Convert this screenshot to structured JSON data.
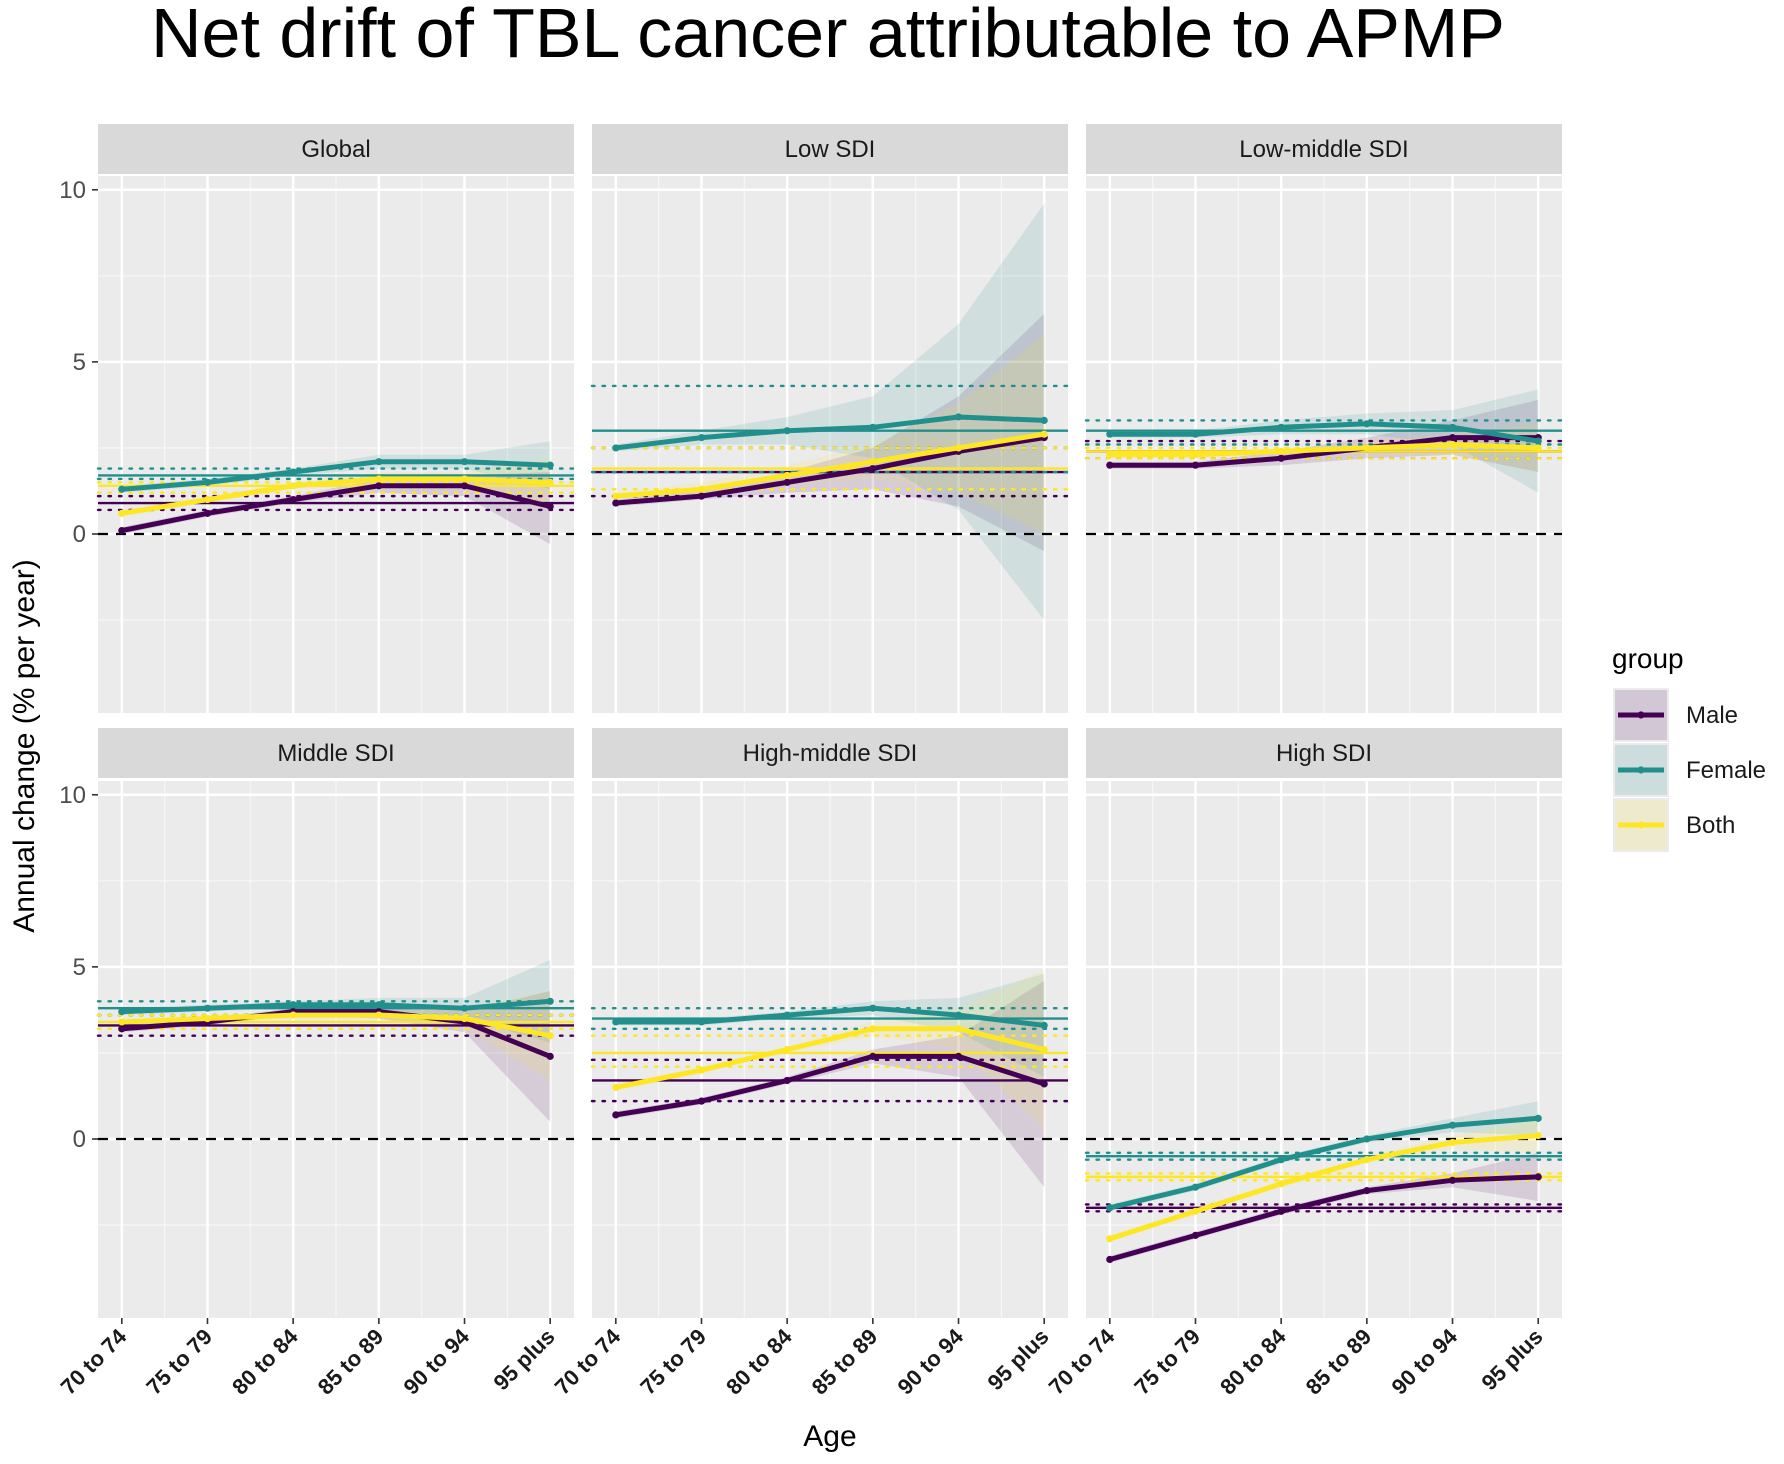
{
  "chart_data": {
    "type": "line",
    "title": "Net drift of TBL cancer attributable to APMP",
    "xlabel": "Age",
    "ylabel": "Annual change (% per year)",
    "ylim": [
      -5.2,
      10.4
    ],
    "yticks": [
      0,
      5,
      10
    ],
    "categories": [
      "70 to 74",
      "75 to 79",
      "80 to 84",
      "85 to 89",
      "90 to 94",
      "95 plus"
    ],
    "legend": {
      "title": "group",
      "position": "right",
      "entries": [
        {
          "name": "Male",
          "color": "#440154"
        },
        {
          "name": "Female",
          "color": "#21908C"
        },
        {
          "name": "Both",
          "color": "#FDE725"
        }
      ]
    },
    "colors": {
      "Male": "#440154",
      "Female": "#21908C",
      "Both": "#FDE725"
    },
    "reference_line": 0,
    "panels": [
      {
        "title": "Global",
        "series": [
          {
            "name": "Male",
            "values": [
              0.1,
              0.6,
              1.0,
              1.4,
              1.4,
              0.8
            ],
            "lower": [
              0.0,
              0.5,
              0.9,
              1.2,
              1.1,
              -0.3
            ],
            "upper": [
              0.2,
              0.7,
              1.1,
              1.6,
              1.7,
              1.8
            ],
            "net_drift": 0.9,
            "ci": [
              0.7,
              1.1
            ]
          },
          {
            "name": "Female",
            "values": [
              1.3,
              1.5,
              1.8,
              2.1,
              2.1,
              2.0
            ],
            "lower": [
              1.2,
              1.4,
              1.7,
              1.9,
              1.9,
              1.3
            ],
            "upper": [
              1.4,
              1.6,
              1.9,
              2.3,
              2.3,
              2.7
            ],
            "net_drift": 1.7,
            "ci": [
              1.6,
              1.9
            ]
          },
          {
            "name": "Both",
            "values": [
              0.6,
              1.0,
              1.4,
              1.6,
              1.6,
              1.5
            ],
            "lower": [
              0.5,
              0.9,
              1.3,
              1.4,
              1.4,
              0.8
            ],
            "upper": [
              0.7,
              1.1,
              1.5,
              1.8,
              1.8,
              2.2
            ],
            "net_drift": 1.4,
            "ci": [
              1.2,
              1.5
            ]
          }
        ]
      },
      {
        "title": "Low SDI",
        "series": [
          {
            "name": "Male",
            "values": [
              0.9,
              1.1,
              1.5,
              1.9,
              2.4,
              2.8
            ],
            "lower": [
              0.8,
              1.0,
              1.2,
              1.3,
              0.8,
              -0.5
            ],
            "upper": [
              1.0,
              1.3,
              1.8,
              2.5,
              4.0,
              6.4
            ],
            "net_drift": 1.8,
            "ci": [
              1.1,
              2.5
            ]
          },
          {
            "name": "Female",
            "values": [
              2.5,
              2.8,
              3.0,
              3.1,
              3.4,
              3.3
            ],
            "lower": [
              2.4,
              2.6,
              2.6,
              2.2,
              0.7,
              -2.5
            ],
            "upper": [
              2.6,
              3.0,
              3.4,
              4.0,
              6.1,
              9.6
            ],
            "net_drift": 3.0,
            "ci": [
              1.8,
              4.3
            ]
          },
          {
            "name": "Both",
            "values": [
              1.1,
              1.3,
              1.7,
              2.1,
              2.5,
              2.9
            ],
            "lower": [
              1.0,
              1.1,
              1.4,
              1.6,
              1.2,
              0.0
            ],
            "upper": [
              1.2,
              1.5,
              2.0,
              2.6,
              3.8,
              5.8
            ],
            "net_drift": 1.9,
            "ci": [
              1.3,
              2.5
            ]
          }
        ]
      },
      {
        "title": "Low-middle SDI",
        "series": [
          {
            "name": "Male",
            "values": [
              2.0,
              2.0,
              2.2,
              2.5,
              2.8,
              2.8
            ],
            "lower": [
              1.9,
              1.9,
              2.0,
              2.2,
              2.3,
              1.8
            ],
            "upper": [
              2.1,
              2.1,
              2.4,
              2.8,
              3.3,
              3.9
            ],
            "net_drift": 2.4,
            "ci": [
              2.2,
              2.7
            ]
          },
          {
            "name": "Female",
            "values": [
              2.9,
              2.9,
              3.1,
              3.2,
              3.1,
              2.7
            ],
            "lower": [
              2.8,
              2.8,
              2.9,
              2.9,
              2.6,
              1.2
            ],
            "upper": [
              3.0,
              3.0,
              3.3,
              3.5,
              3.6,
              4.2
            ],
            "net_drift": 3.0,
            "ci": [
              2.6,
              3.3
            ]
          },
          {
            "name": "Both",
            "values": [
              2.3,
              2.3,
              2.4,
              2.5,
              2.6,
              2.5
            ],
            "lower": [
              2.2,
              2.2,
              2.3,
              2.3,
              2.3,
              1.8
            ],
            "upper": [
              2.4,
              2.4,
              2.5,
              2.7,
              2.9,
              3.2
            ],
            "net_drift": 2.4,
            "ci": [
              2.2,
              2.5
            ]
          }
        ]
      },
      {
        "title": "Middle SDI",
        "series": [
          {
            "name": "Male",
            "values": [
              3.2,
              3.4,
              3.7,
              3.7,
              3.4,
              2.4
            ],
            "lower": [
              3.1,
              3.3,
              3.6,
              3.5,
              3.1,
              0.5
            ],
            "upper": [
              3.3,
              3.5,
              3.8,
              3.9,
              3.7,
              4.3
            ],
            "net_drift": 3.3,
            "ci": [
              3.0,
              3.6
            ]
          },
          {
            "name": "Female",
            "values": [
              3.7,
              3.8,
              3.9,
              3.9,
              3.8,
              4.0
            ],
            "lower": [
              3.6,
              3.7,
              3.8,
              3.7,
              3.5,
              2.8
            ],
            "upper": [
              3.8,
              3.9,
              4.0,
              4.1,
              4.1,
              5.2
            ],
            "net_drift": 3.8,
            "ci": [
              3.6,
              4.0
            ]
          },
          {
            "name": "Both",
            "values": [
              3.4,
              3.5,
              3.6,
              3.6,
              3.5,
              3.0
            ],
            "lower": [
              3.3,
              3.4,
              3.5,
              3.5,
              3.2,
              1.7
            ],
            "upper": [
              3.5,
              3.6,
              3.7,
              3.7,
              3.8,
              4.3
            ],
            "net_drift": 3.4,
            "ci": [
              3.2,
              3.6
            ]
          }
        ]
      },
      {
        "title": "High-middle SDI",
        "series": [
          {
            "name": "Male",
            "values": [
              0.7,
              1.1,
              1.7,
              2.4,
              2.4,
              1.6
            ],
            "lower": [
              0.6,
              1.0,
              1.6,
              2.2,
              1.8,
              -1.4
            ],
            "upper": [
              0.8,
              1.2,
              1.8,
              2.6,
              3.0,
              4.6
            ],
            "net_drift": 1.7,
            "ci": [
              1.1,
              2.3
            ]
          },
          {
            "name": "Female",
            "values": [
              3.4,
              3.4,
              3.6,
              3.8,
              3.6,
              3.3
            ],
            "lower": [
              3.3,
              3.3,
              3.5,
              3.6,
              3.1,
              1.8
            ],
            "upper": [
              3.5,
              3.5,
              3.7,
              4.0,
              4.1,
              4.8
            ],
            "net_drift": 3.5,
            "ci": [
              3.2,
              3.8
            ]
          },
          {
            "name": "Both",
            "values": [
              1.5,
              2.0,
              2.6,
              3.2,
              3.2,
              2.6
            ],
            "lower": [
              1.4,
              1.9,
              2.5,
              3.0,
              2.6,
              0.3
            ],
            "upper": [
              1.6,
              2.1,
              2.7,
              3.4,
              3.8,
              4.9
            ],
            "net_drift": 2.5,
            "ci": [
              2.1,
              3.0
            ]
          }
        ]
      },
      {
        "title": "High SDI",
        "series": [
          {
            "name": "Male",
            "values": [
              -3.5,
              -2.8,
              -2.1,
              -1.5,
              -1.2,
              -1.1
            ],
            "lower": [
              -3.6,
              -2.9,
              -2.2,
              -1.6,
              -1.4,
              -1.8
            ],
            "upper": [
              -3.4,
              -2.7,
              -2.0,
              -1.4,
              -1.0,
              -0.4
            ],
            "net_drift": -2.0,
            "ci": [
              -2.1,
              -1.9
            ]
          },
          {
            "name": "Female",
            "values": [
              -2.0,
              -1.4,
              -0.6,
              0.0,
              0.4,
              0.6
            ],
            "lower": [
              -2.1,
              -1.5,
              -0.7,
              -0.1,
              0.2,
              0.1
            ],
            "upper": [
              -1.9,
              -1.3,
              -0.5,
              0.1,
              0.6,
              1.1
            ],
            "net_drift": -0.5,
            "ci": [
              -0.6,
              -0.4
            ]
          },
          {
            "name": "Both",
            "values": [
              -2.9,
              -2.1,
              -1.3,
              -0.6,
              -0.1,
              0.1
            ],
            "lower": [
              -3.0,
              -2.2,
              -1.4,
              -0.7,
              -0.3,
              -0.4
            ],
            "upper": [
              -2.8,
              -2.0,
              -1.2,
              -0.5,
              0.1,
              0.6
            ],
            "net_drift": -1.1,
            "ci": [
              -1.2,
              -1.0
            ]
          }
        ]
      }
    ]
  }
}
